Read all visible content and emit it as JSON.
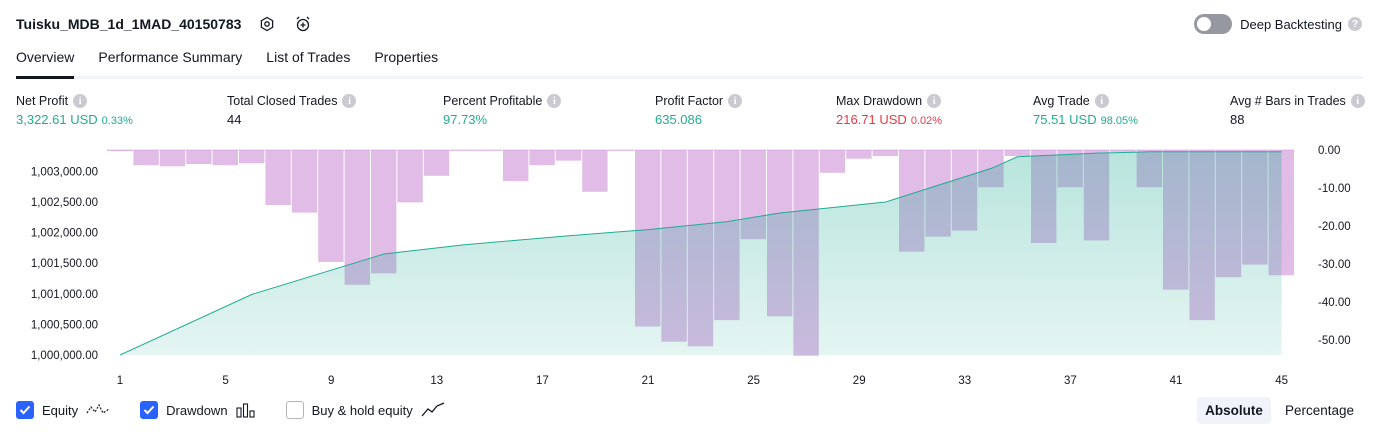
{
  "header": {
    "title": "Tuisku_MDB_1d_1MAD_40150783",
    "deep_backtesting": "Deep Backtesting"
  },
  "tabs": [
    "Overview",
    "Performance Summary",
    "List of Trades",
    "Properties"
  ],
  "metrics": [
    {
      "label": "Net Profit",
      "value": "3,322.61 USD",
      "pct": "0.33%",
      "color": "green"
    },
    {
      "label": "Total Closed Trades",
      "value": "44",
      "pct": "",
      "color": "dark"
    },
    {
      "label": "Percent Profitable",
      "value": "97.73%",
      "pct": "",
      "color": "green"
    },
    {
      "label": "Profit Factor",
      "value": "635.086",
      "pct": "",
      "color": "green"
    },
    {
      "label": "Max Drawdown",
      "value": "216.71 USD",
      "pct": "0.02%",
      "color": "red"
    },
    {
      "label": "Avg Trade",
      "value": "75.51 USD",
      "pct": "98.05%",
      "color": "green"
    },
    {
      "label": "Avg # Bars in Trades",
      "value": "88",
      "pct": "",
      "color": "dark"
    }
  ],
  "chart_data": {
    "type": "area",
    "x_ticks": [
      "1",
      "5",
      "9",
      "13",
      "17",
      "21",
      "25",
      "29",
      "33",
      "37",
      "41",
      "45"
    ],
    "left_axis": {
      "ticks": [
        "1,003,000.00",
        "1,002,500.00",
        "1,002,000.00",
        "1,001,500.00",
        "1,001,000.00",
        "1,000,500.00",
        "1,000,000.00"
      ],
      "ylim": [
        1000000,
        1003350
      ]
    },
    "right_axis": {
      "ticks": [
        "0.00",
        "-10.00",
        "-20.00",
        "-30.00",
        "-40.00",
        "-50.00"
      ],
      "ylim": [
        -54,
        0
      ]
    },
    "series": [
      {
        "name": "Equity",
        "type": "area",
        "color": "#22ab94",
        "x": [
          1,
          6,
          11,
          14,
          18,
          21,
          24,
          26,
          30,
          34,
          35,
          38,
          40,
          45
        ],
        "values": [
          1000000,
          1000990,
          1001650,
          1001800,
          1001950,
          1002050,
          1002180,
          1002320,
          1002500,
          1003050,
          1003240,
          1003300,
          1003320,
          1003323
        ]
      },
      {
        "name": "Drawdown",
        "type": "bar",
        "color": "#ce93d8",
        "x": [
          1,
          2,
          3,
          4,
          5,
          6,
          7,
          8,
          9,
          10,
          11,
          12,
          13,
          14,
          15,
          16,
          17,
          18,
          19,
          20,
          21,
          22,
          23,
          24,
          25,
          26,
          27,
          28,
          29,
          30,
          31,
          32,
          33,
          34,
          35,
          36,
          37,
          38,
          39,
          40,
          41,
          42,
          43,
          44,
          45
        ],
        "values": [
          -0.3,
          -4,
          -4.3,
          -3.7,
          -4,
          -3.5,
          -14.5,
          -16.5,
          -29.5,
          -35.5,
          -32.5,
          -13.8,
          -6.8,
          -0.2,
          -0.2,
          -8.2,
          -4,
          -2.8,
          -11,
          -0.2,
          -46.5,
          -50.5,
          -51.7,
          -44.8,
          -23.5,
          -43.8,
          -54.2,
          -6,
          -2.3,
          -1.6,
          -26.8,
          -22.8,
          -21.2,
          -9.8,
          -1.6,
          -24.5,
          -9.8,
          -23.8,
          -0.5,
          -9.8,
          -36.8,
          -44.8,
          -33.5,
          -30.2,
          -33
        ]
      }
    ]
  },
  "legend": [
    {
      "label": "Equity",
      "checked": true,
      "icon": "equity-line-icon"
    },
    {
      "label": "Drawdown",
      "checked": true,
      "icon": "drawdown-bars-icon"
    },
    {
      "label": "Buy & hold equity",
      "checked": false,
      "icon": "buyhold-line-icon"
    }
  ],
  "modes": [
    "Absolute",
    "Percentage"
  ],
  "colors": {
    "green": "#22ab94",
    "red": "#f23645",
    "accent": "#2962ff",
    "drawdown": "#ce93d8"
  }
}
